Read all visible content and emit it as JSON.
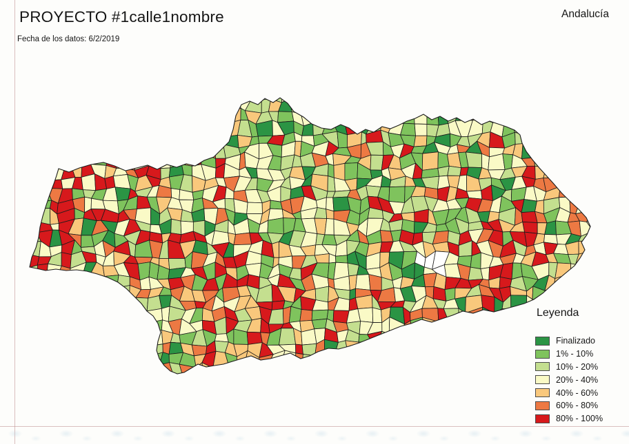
{
  "header": {
    "title": "PROYECTO #1calle1nombre",
    "subtitle": "Fecha de los datos: 6/2/2019",
    "region_label": "Andalucía"
  },
  "legend": {
    "title": "Leyenda",
    "entries": [
      {
        "label": "Finalizado",
        "color": "#2b9444"
      },
      {
        "label": "1% - 10%",
        "color": "#7fc35d"
      },
      {
        "label": "10% - 20%",
        "color": "#c4df8f"
      },
      {
        "label": "20% - 40%",
        "color": "#fafac6"
      },
      {
        "label": "40% - 60%",
        "color": "#f9c87c"
      },
      {
        "label": "60% - 80%",
        "color": "#ed7943"
      },
      {
        "label": "80% - 100%",
        "color": "#d7191c"
      }
    ]
  },
  "map": {
    "name": "andalucia-municipal-choropleth",
    "border_color": "#1b1b1b",
    "no_data_color": "#ffffff"
  },
  "guides": {
    "line_color": "#c08c8c"
  }
}
